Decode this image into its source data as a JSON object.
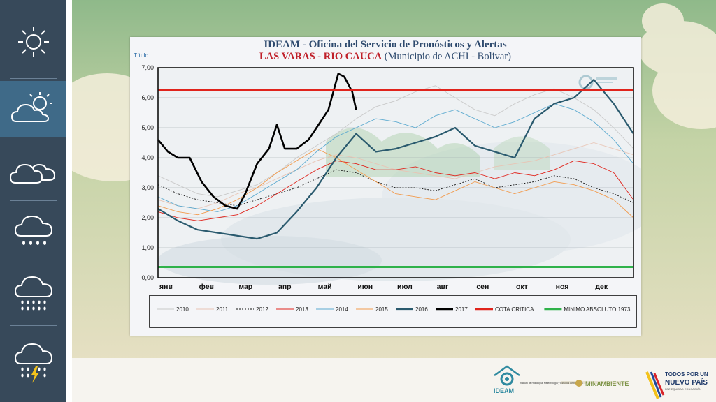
{
  "sidebar": {
    "items": [
      {
        "icon": "sun-icon"
      },
      {
        "icon": "cloud-sun-icon",
        "active": true
      },
      {
        "icon": "clouds-icon"
      },
      {
        "icon": "cloud-drizzle-icon"
      },
      {
        "icon": "cloud-rain-icon"
      },
      {
        "icon": "cloud-storm-icon"
      }
    ]
  },
  "chart_data": {
    "type": "line",
    "title": "IDEAM - Oficina del Servicio de Pronósticos y Alertas",
    "subtitle_bold": "LAS  VARAS - RIO CAUCA",
    "subtitle_rest": " (Municipio de ACHI -  Bolivar)",
    "ylabel": "Título",
    "ylim": [
      0,
      7
    ],
    "yticks": [
      "0,00",
      "1,00",
      "2,00",
      "3,00",
      "4,00",
      "5,00",
      "6,00",
      "7,00"
    ],
    "categories": [
      "янв",
      "фев",
      "мар",
      "апр",
      "май",
      "июн",
      "июл",
      "авг",
      "сен",
      "окт",
      "ноя",
      "дек"
    ],
    "grid": true,
    "legend_position": "bottom",
    "series": [
      {
        "name": "2010",
        "color": "#c9c9c9",
        "width": 0.9,
        "dash": "",
        "x": [
          0,
          0.5,
          1,
          1.5,
          2,
          2.5,
          3,
          3.5,
          4,
          4.5,
          5,
          5.5,
          6,
          6.5,
          7,
          7.5,
          8,
          8.5,
          9,
          9.5,
          10,
          10.5,
          11,
          11.5,
          12
        ],
        "values": [
          3.4,
          3.1,
          2.8,
          2.7,
          2.9,
          3.1,
          3.5,
          4.0,
          4.4,
          4.8,
          5.3,
          5.7,
          5.9,
          6.2,
          6.4,
          6.0,
          5.6,
          5.4,
          5.8,
          6.1,
          6.3,
          6.0,
          5.6,
          5.0,
          4.3
        ]
      },
      {
        "name": "2011",
        "color": "#e8c4b4",
        "width": 0.9,
        "dash": "",
        "x": [
          0,
          0.5,
          1,
          1.5,
          2,
          2.5,
          3,
          3.5,
          4,
          4.5,
          5,
          5.5,
          6,
          6.5,
          7,
          7.5,
          8,
          8.5,
          9,
          9.5,
          10,
          10.5,
          11,
          11.5,
          12
        ],
        "values": [
          2.6,
          2.4,
          2.3,
          2.5,
          2.8,
          3.0,
          3.3,
          3.6,
          3.9,
          4.1,
          4.0,
          3.8,
          3.6,
          3.5,
          3.4,
          3.3,
          3.5,
          3.7,
          3.8,
          3.9,
          4.1,
          4.3,
          4.5,
          4.3,
          4.1
        ]
      },
      {
        "name": "2012",
        "color": "#111111",
        "width": 0.9,
        "dash": "2,2",
        "x": [
          0,
          0.5,
          1,
          1.5,
          2,
          2.5,
          3,
          3.5,
          4,
          4.5,
          5,
          5.5,
          6,
          6.5,
          7,
          7.5,
          8,
          8.5,
          9,
          9.5,
          10,
          10.5,
          11,
          11.5,
          12
        ],
        "values": [
          3.1,
          2.8,
          2.6,
          2.5,
          2.4,
          2.6,
          2.8,
          3.0,
          3.3,
          3.6,
          3.5,
          3.2,
          3.0,
          3.0,
          2.9,
          3.1,
          3.3,
          3.0,
          3.1,
          3.2,
          3.4,
          3.3,
          3.0,
          2.8,
          2.5
        ]
      },
      {
        "name": "2013",
        "color": "#e0241c",
        "width": 0.9,
        "dash": "",
        "x": [
          0,
          0.5,
          1,
          1.5,
          2,
          2.5,
          3,
          3.5,
          4,
          4.5,
          5,
          5.5,
          6,
          6.5,
          7,
          7.5,
          8,
          8.5,
          9,
          9.5,
          10,
          10.5,
          11,
          11.5,
          12
        ],
        "values": [
          2.2,
          2.0,
          1.9,
          2.0,
          2.1,
          2.4,
          2.8,
          3.2,
          3.6,
          3.9,
          3.8,
          3.6,
          3.6,
          3.7,
          3.5,
          3.4,
          3.5,
          3.3,
          3.5,
          3.4,
          3.6,
          3.9,
          3.8,
          3.5,
          2.6
        ]
      },
      {
        "name": "2014",
        "color": "#5aa9cf",
        "width": 0.9,
        "dash": "",
        "x": [
          0,
          0.5,
          1,
          1.5,
          2,
          2.5,
          3,
          3.5,
          4,
          4.5,
          5,
          5.5,
          6,
          6.5,
          7,
          7.5,
          8,
          8.5,
          9,
          9.5,
          10,
          10.5,
          11,
          11.5,
          12
        ],
        "values": [
          2.7,
          2.4,
          2.3,
          2.2,
          2.4,
          2.8,
          3.2,
          3.6,
          4.2,
          4.7,
          5.0,
          5.3,
          5.2,
          5.0,
          5.4,
          5.6,
          5.3,
          5.0,
          5.2,
          5.5,
          5.8,
          5.6,
          5.2,
          4.6,
          3.8
        ]
      },
      {
        "name": "2015",
        "color": "#f29a4c",
        "width": 0.9,
        "dash": "",
        "x": [
          0,
          0.5,
          1,
          1.5,
          2,
          2.5,
          3,
          3.5,
          4,
          4.5,
          5,
          5.5,
          6,
          6.5,
          7,
          7.5,
          8,
          8.5,
          9,
          9.5,
          10,
          10.5,
          11,
          11.5,
          12
        ],
        "values": [
          2.4,
          2.2,
          2.1,
          2.3,
          2.6,
          3.0,
          3.5,
          3.9,
          4.3,
          4.0,
          3.6,
          3.2,
          2.8,
          2.7,
          2.6,
          2.9,
          3.2,
          3.0,
          2.8,
          3.0,
          3.2,
          3.1,
          2.9,
          2.6,
          2.0
        ]
      },
      {
        "name": "2016",
        "color": "#2a5a6e",
        "width": 2.2,
        "dash": "",
        "x": [
          0,
          0.5,
          1,
          1.5,
          2,
          2.5,
          3,
          3.5,
          4,
          4.5,
          5,
          5.5,
          6,
          6.5,
          7,
          7.5,
          8,
          8.5,
          9,
          9.5,
          10,
          10.5,
          11,
          11.5,
          12
        ],
        "values": [
          2.3,
          1.9,
          1.6,
          1.5,
          1.4,
          1.3,
          1.5,
          2.2,
          3.0,
          4.0,
          4.8,
          4.2,
          4.3,
          4.5,
          4.7,
          5.0,
          4.4,
          4.2,
          4.0,
          5.3,
          5.8,
          6.0,
          6.6,
          5.8,
          4.8
        ]
      },
      {
        "name": "2017",
        "color": "#000000",
        "width": 2.6,
        "dash": "",
        "x": [
          0,
          0.25,
          0.5,
          0.8,
          1.1,
          1.4,
          1.7,
          2.0,
          2.2,
          2.5,
          2.8,
          3.0,
          3.2,
          3.5,
          3.8,
          4.0,
          4.3,
          4.55,
          4.7,
          4.9,
          5.0
        ],
        "values": [
          4.6,
          4.2,
          4.0,
          4.0,
          3.2,
          2.7,
          2.4,
          2.3,
          2.8,
          3.8,
          4.3,
          5.1,
          4.3,
          4.3,
          4.6,
          5.0,
          5.6,
          6.8,
          6.7,
          6.2,
          5.6
        ]
      },
      {
        "name": "COTA CRITICA",
        "color": "#e0241c",
        "width": 3,
        "dash": "",
        "x": [
          0,
          12
        ],
        "values": [
          6.25,
          6.25
        ]
      },
      {
        "name": "MINIMO ABSOLUTO 1973",
        "color": "#2fb24a",
        "width": 3,
        "dash": "",
        "x": [
          0,
          12
        ],
        "values": [
          0.36,
          0.36
        ]
      }
    ]
  },
  "footer": {
    "ideam_logo_text": "IDEAM",
    "ideam_caption": "Instituto de Hidrología, Meteorología y Estudios Ambientales",
    "minambiente": "MINAMBIENTE",
    "todos_line1": "TODOS POR UN",
    "todos_line2": "NUEVO PAÍS",
    "todos_line3": "PAZ  EQUIDAD  EDUCACIÓN"
  }
}
